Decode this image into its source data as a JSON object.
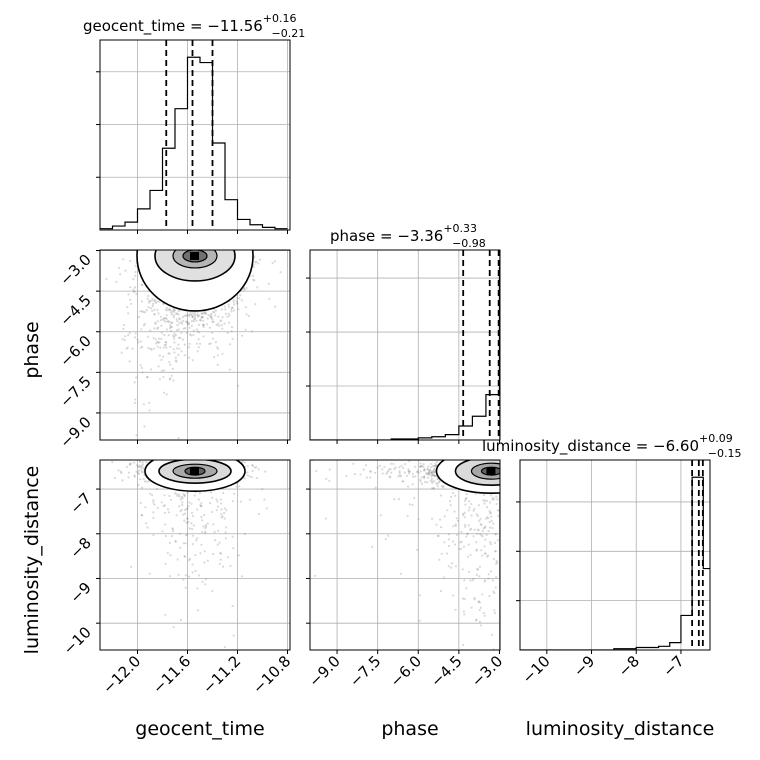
{
  "chart_data": {
    "type": "corner",
    "parameters": [
      "geocent_time",
      "phase",
      "luminosity_distance"
    ],
    "axis_labels": {
      "geocent_time": "geocent_time",
      "phase": "phase",
      "luminosity_distance": "luminosity_distance"
    },
    "ranges": {
      "geocent_time": [
        -12.3,
        -10.78
      ],
      "phase": [
        -10.0,
        -2.98
      ],
      "luminosity_distance": [
        -10.6,
        -6.35
      ]
    },
    "ticks": {
      "geocent_time": {
        "values": [
          -12.0,
          -11.6,
          -11.2,
          -10.8
        ],
        "labels": [
          "−12.0",
          "−11.6",
          "−11.2",
          "−10.8"
        ]
      },
      "phase": {
        "values": [
          -9.0,
          -7.5,
          -6.0,
          -4.5,
          -3.0
        ],
        "labels": [
          "−9.0",
          "−7.5",
          "−6.0",
          "−4.5",
          "−3.0"
        ]
      },
      "luminosity_distance": {
        "values": [
          -10,
          -9,
          -8,
          -7
        ],
        "labels": [
          "−10",
          "−9",
          "−8",
          "−7"
        ]
      }
    },
    "titles": {
      "geocent_time": {
        "text": "geocent_time = −11.56",
        "sup": "+0.16",
        "sub": "−0.21"
      },
      "phase": {
        "text": "phase = −3.36",
        "sup": "+0.33",
        "sub": "−0.98"
      },
      "luminosity_distance": {
        "text": "luminosity_distance = −6.60",
        "sup": "+0.09",
        "sub": "−0.15"
      }
    },
    "quantiles": {
      "geocent_time": [
        -11.77,
        -11.56,
        -11.4
      ],
      "phase": [
        -4.34,
        -3.36,
        -3.03
      ],
      "luminosity_distance": [
        -6.75,
        -6.6,
        -6.51
      ]
    },
    "histograms": {
      "geocent_time": {
        "edges": [
          -12.3,
          -12.2,
          -12.1,
          -12.0,
          -11.9,
          -11.8,
          -11.7,
          -11.6,
          -11.5,
          -11.4,
          -11.3,
          -11.2,
          -11.1,
          -11.0,
          -10.9,
          -10.8
        ],
        "counts": [
          1,
          3,
          6,
          16,
          30,
          62,
          92,
          131,
          127,
          66,
          23,
          8,
          4,
          2,
          1
        ]
      },
      "phase": {
        "edges": [
          -10.0,
          -9.5,
          -9.0,
          -8.5,
          -8.0,
          -7.5,
          -7.0,
          -6.5,
          -6.0,
          -5.5,
          -5.0,
          -4.5,
          -4.0,
          -3.5,
          -3.0
        ],
        "counts": [
          0,
          0,
          0,
          0,
          0,
          0,
          1,
          1,
          2,
          3,
          5,
          13,
          22,
          42
        ],
        "partial_last": {
          "x": [
            -3.0,
            -2.98
          ],
          "count": 160
        }
      },
      "luminosity_distance": {
        "edges": [
          -10.6,
          -10.0,
          -9.5,
          -9.0,
          -8.5,
          -8.0,
          -7.5,
          -7.25,
          -7.0,
          -6.75,
          -6.6,
          -6.5,
          -6.35
        ],
        "counts": [
          0,
          0,
          0,
          0,
          1,
          2,
          3,
          6,
          28,
          140,
          140,
          66
        ]
      }
    },
    "scatter_2d": {
      "geocent_time__phase": {
        "x_center": -11.56,
        "x_spread": 0.22,
        "y_peak": -3.2
      },
      "geocent_time__luminosity_distance": {
        "x_center": -11.56,
        "x_spread": 0.2,
        "y_peak": -6.6
      },
      "phase__luminosity_distance": {
        "x_peak": -3.0,
        "y_peak": -6.6
      }
    },
    "grid": true,
    "colors": {
      "line": "#000000",
      "grid": "#b0b0b0",
      "points": "#808080"
    }
  }
}
